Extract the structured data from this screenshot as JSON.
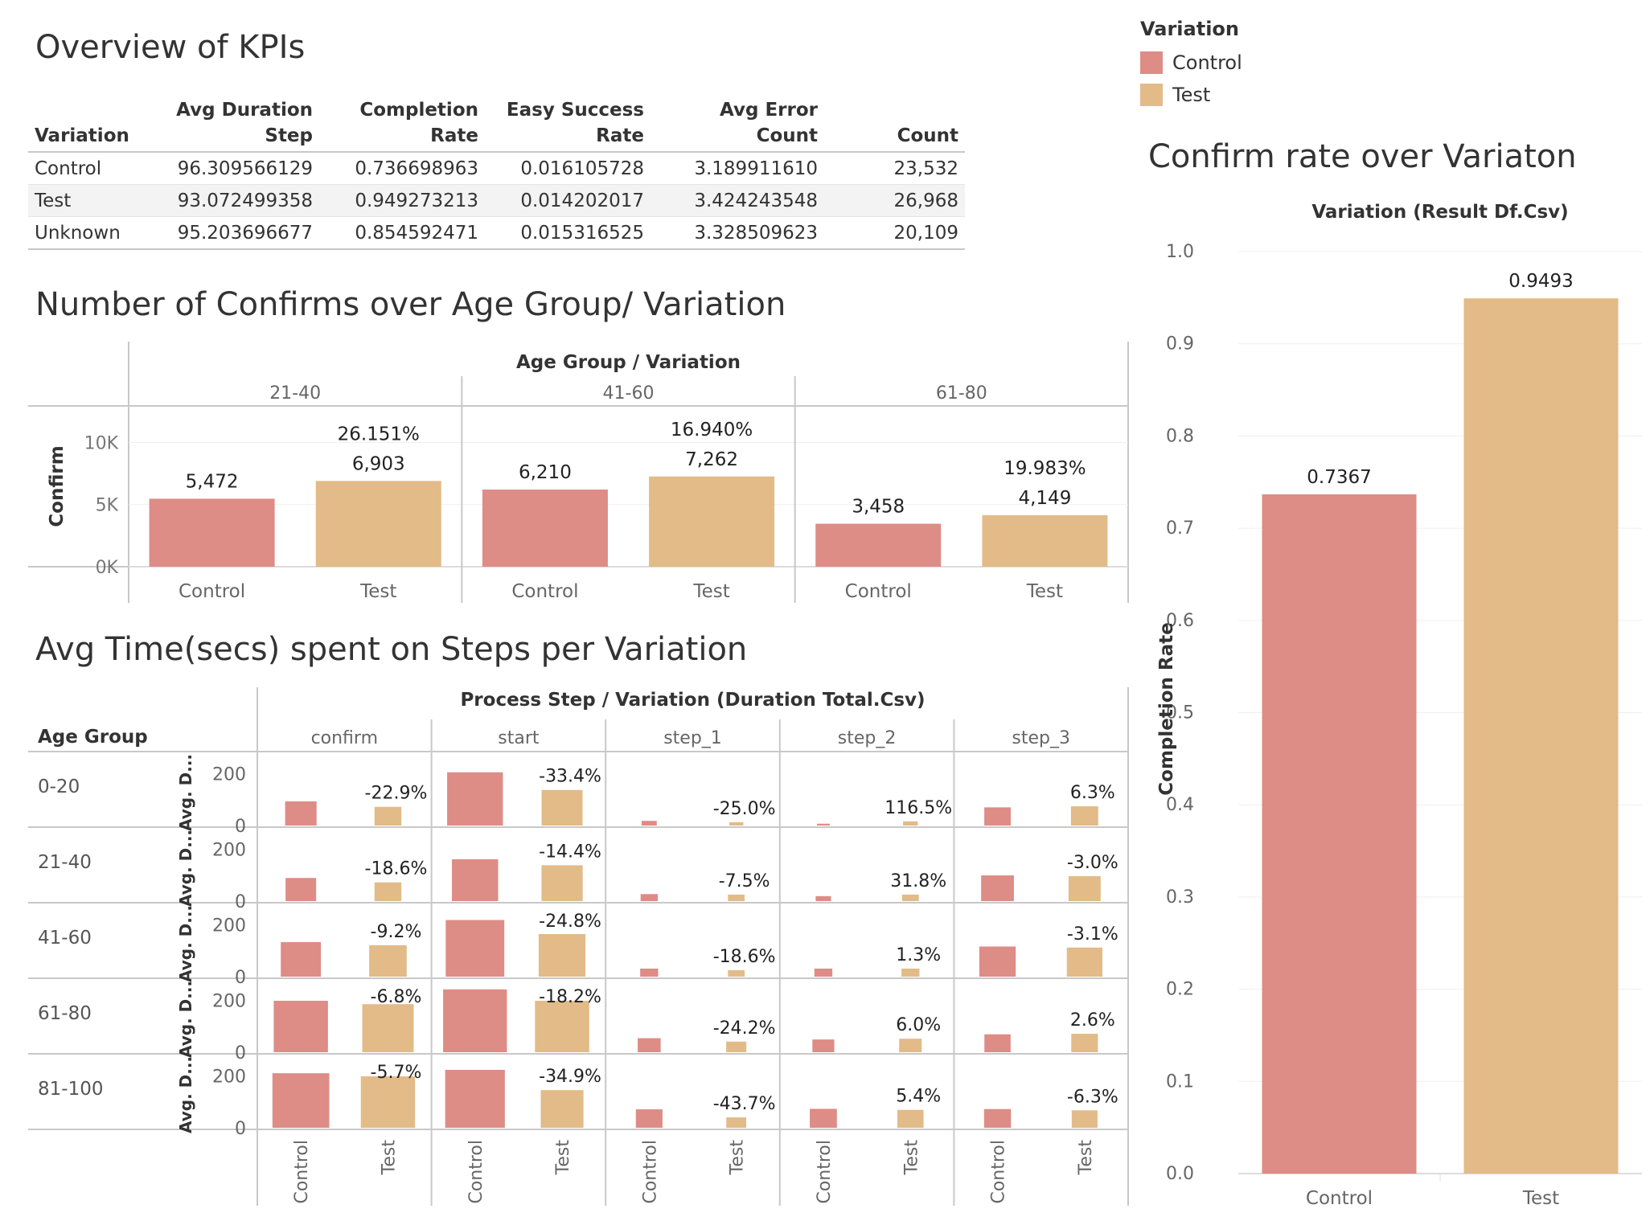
{
  "colors": {
    "control": "#DE8C86",
    "test": "#E2BB88"
  },
  "legend": {
    "title": "Variation",
    "items": [
      {
        "label": "Control",
        "color": "#DE8C86"
      },
      {
        "label": "Test",
        "color": "#E2BB88"
      }
    ]
  },
  "kpi_table": {
    "title": "Overview of KPIs",
    "columns": [
      "Variation",
      "Avg Duration\nStep",
      "Completion\nRate",
      "Easy Success\nRate",
      "Avg Error Count",
      "Count"
    ],
    "rows": [
      [
        "Control",
        "96.309566129",
        "0.736698963",
        "0.016105728",
        "3.189911610",
        "23,532"
      ],
      [
        "Test",
        "93.072499358",
        "0.949273213",
        "0.014202017",
        "3.424243548",
        "26,968"
      ],
      [
        "Unknown",
        "95.203696677",
        "0.854592471",
        "0.015316525",
        "3.328509623",
        "20,109"
      ]
    ]
  },
  "chart_data": [
    {
      "id": "confirms",
      "type": "bar",
      "title": "Number of Confirms over Age Group/ Variation",
      "header": "Age Group / Variation",
      "ylabel": "Confirm",
      "ylim": [
        0,
        11000
      ],
      "yticks": [
        {
          "v": 0,
          "label": "0K"
        },
        {
          "v": 5000,
          "label": "5K"
        },
        {
          "v": 10000,
          "label": "10K"
        }
      ],
      "groups": [
        {
          "name": "21-40",
          "bars": [
            {
              "variation": "Control",
              "value": 5472,
              "label": "5,472"
            },
            {
              "variation": "Test",
              "value": 6903,
              "label": "6,903",
              "pct": "26.151%"
            }
          ]
        },
        {
          "name": "41-60",
          "bars": [
            {
              "variation": "Control",
              "value": 6210,
              "label": "6,210"
            },
            {
              "variation": "Test",
              "value": 7262,
              "label": "7,262",
              "pct": "16.940%"
            }
          ]
        },
        {
          "name": "61-80",
          "bars": [
            {
              "variation": "Control",
              "value": 3458,
              "label": "3,458"
            },
            {
              "variation": "Test",
              "value": 4149,
              "label": "4,149",
              "pct": "19.983%"
            }
          ]
        }
      ]
    },
    {
      "id": "steps",
      "type": "bar",
      "title": "Avg Time(secs) spent on Steps per Variation",
      "header": "Process Step / Variation (Duration Total.Csv)",
      "row_header": "Age Group",
      "row_axis_label": "Avg. D...",
      "ylim": [
        0,
        260
      ],
      "yticks": [
        {
          "v": 0,
          "label": "0"
        },
        {
          "v": 200,
          "label": "200"
        }
      ],
      "steps": [
        "confirm",
        "start",
        "step_1",
        "step_2",
        "step_3"
      ],
      "variations": [
        "Control",
        "Test"
      ],
      "rows": [
        {
          "age": "0-20",
          "values": [
            [
              93,
              72
            ],
            [
              205,
              137
            ],
            [
              18,
              13
            ],
            [
              7,
              16
            ],
            [
              70,
              74
            ]
          ],
          "pct": [
            "-22.9%",
            "-33.4%",
            "-25.0%",
            "116.5%",
            "6.3%"
          ]
        },
        {
          "age": "21-40",
          "values": [
            [
              89,
              72
            ],
            [
              161,
              138
            ],
            [
              27,
              25
            ],
            [
              19,
              25
            ],
            [
              99,
              96
            ]
          ],
          "pct": [
            "-18.6%",
            "-14.4%",
            "-7.5%",
            "31.8%",
            "-3.0%"
          ]
        },
        {
          "age": "41-60",
          "values": [
            [
              133,
              121
            ],
            [
              218,
              164
            ],
            [
              31,
              25
            ],
            [
              31,
              31
            ],
            [
              116,
              112
            ]
          ],
          "pct": [
            "-9.2%",
            "-24.8%",
            "-18.6%",
            "1.3%",
            "-3.1%"
          ]
        },
        {
          "age": "61-80",
          "values": [
            [
              198,
              185
            ],
            [
              242,
              198
            ],
            [
              54,
              41
            ],
            [
              49,
              52
            ],
            [
              69,
              71
            ]
          ],
          "pct": [
            "-6.8%",
            "-18.2%",
            "-24.2%",
            "6.0%",
            "2.6%"
          ]
        },
        {
          "age": "81-100",
          "values": [
            [
              210,
              198
            ],
            [
              223,
              145
            ],
            [
              71,
              40
            ],
            [
              73,
              69
            ],
            [
              72,
              67
            ]
          ],
          "pct": [
            "-5.7%",
            "-34.9%",
            "-43.7%",
            "5.4%",
            "-6.3%"
          ]
        }
      ]
    },
    {
      "id": "confirm_rate",
      "type": "bar",
      "title": "Confirm rate over Variaton",
      "header": "Variation (Result Df.Csv)",
      "ylabel": "Completion Rate",
      "ylim": [
        0,
        1.0
      ],
      "yticks": [
        0.0,
        0.1,
        0.2,
        0.3,
        0.4,
        0.5,
        0.6,
        0.7,
        0.8,
        0.9,
        1.0
      ],
      "categories": [
        "Control",
        "Test"
      ],
      "values": [
        0.7367,
        0.9493
      ],
      "labels": [
        "0.7367",
        "0.9493"
      ]
    }
  ]
}
